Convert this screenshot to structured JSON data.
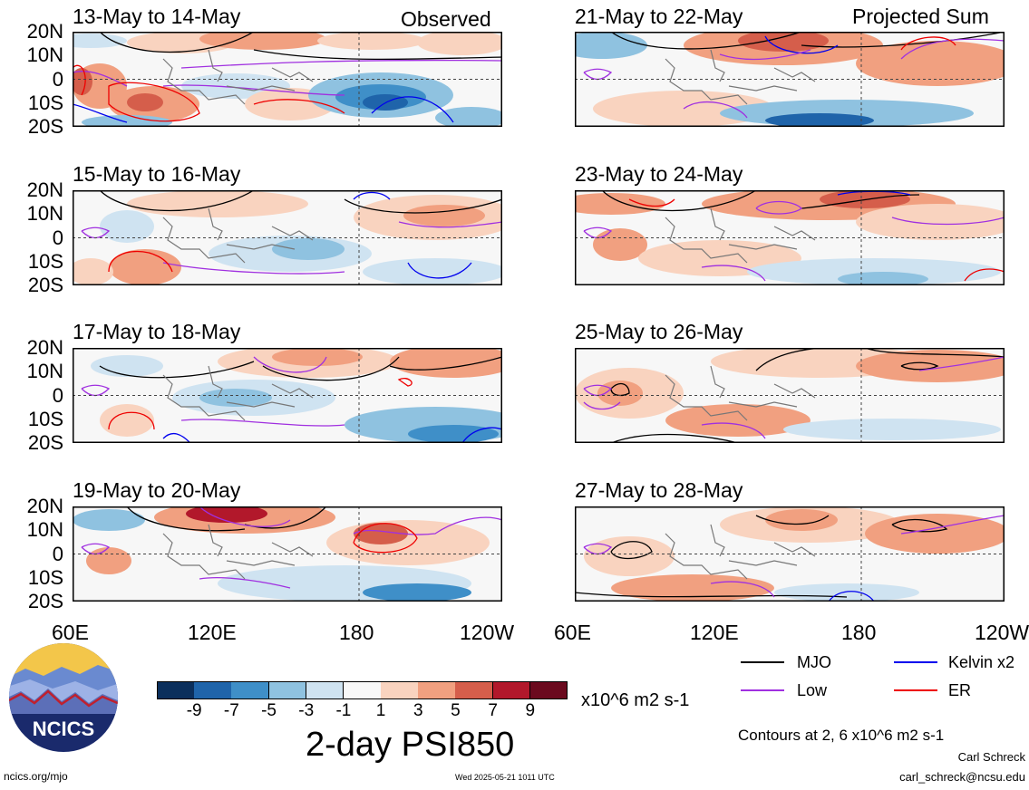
{
  "panels": [
    {
      "title": "13-May to 14-May",
      "tag": "Observed"
    },
    {
      "title": "15-May to 16-May",
      "tag": ""
    },
    {
      "title": "17-May to 18-May",
      "tag": ""
    },
    {
      "title": "19-May to 20-May",
      "tag": ""
    },
    {
      "title": "21-May to 22-May",
      "tag": "Projected Sum"
    },
    {
      "title": "23-May to 24-May",
      "tag": ""
    },
    {
      "title": "25-May to 26-May",
      "tag": ""
    },
    {
      "title": "27-May to 28-May",
      "tag": ""
    }
  ],
  "lat_labels": [
    "20N",
    "10N",
    "0",
    "10S",
    "20S"
  ],
  "lon_labels": [
    "60E",
    "120E",
    "180",
    "120W"
  ],
  "colorbar": {
    "title": "2-day PSI850",
    "units": "x10^6 m2 s-1",
    "ticks": [
      "-9",
      "-7",
      "-5",
      "-3",
      "-1",
      "1",
      "3",
      "5",
      "7",
      "9"
    ],
    "colors": [
      "#0b2f5c",
      "#1f64aa",
      "#3f8fc8",
      "#8fc2e0",
      "#cfe3f1",
      "#f8f8f8",
      "#f9d3bf",
      "#f1a080",
      "#d55e4b",
      "#b2182b",
      "#6b0a1e"
    ]
  },
  "contour_legend": {
    "items": [
      {
        "label": "MJO",
        "color": "#000000"
      },
      {
        "label": "Kelvin x2",
        "color": "#0000ee"
      },
      {
        "label": "Low",
        "color": "#a030e0"
      },
      {
        "label": "ER",
        "color": "#ee0000"
      }
    ],
    "note": "Contours at 2, 6 x10^6 m2 s-1"
  },
  "credits": {
    "logo_text": "NCICS",
    "site": "ncics.org/mjo",
    "timestamp": "Wed 2025-05-21 1011 UTC",
    "author": "Carl Schreck",
    "email": "carl_schreck@ncsu.edu"
  },
  "chart_data": {
    "type": "heatmap",
    "variable": "2-day PSI850",
    "units": "x10^6 m2 s-1",
    "x_axis": {
      "ticks": [
        "60E",
        "120E",
        "180",
        "120W"
      ]
    },
    "y_axis": {
      "ticks": [
        "20N",
        "10N",
        "0",
        "10S",
        "20S"
      ]
    },
    "color_levels": [
      -9,
      -7,
      -5,
      -3,
      -1,
      1,
      3,
      5,
      7,
      9
    ],
    "contour_levels": [
      2,
      6
    ],
    "contour_series": [
      "MJO",
      "Kelvin x2",
      "Low",
      "ER"
    ],
    "panels": [
      "13-May to 14-May",
      "15-May to 16-May",
      "17-May to 18-May",
      "19-May to 20-May",
      "21-May to 22-May",
      "23-May to 24-May",
      "25-May to 26-May",
      "27-May to 28-May"
    ]
  }
}
